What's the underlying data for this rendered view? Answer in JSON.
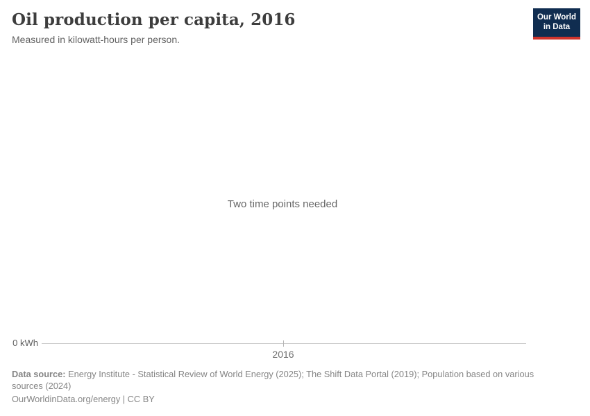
{
  "header": {
    "title": "Oil production per capita, 2016",
    "subtitle": "Measured in kilowatt-hours per person.",
    "logo": {
      "line1": "Our World",
      "line2": "in Data"
    }
  },
  "chart": {
    "empty_state_message": "Two time points needed",
    "axis": {
      "y_zero_label": "0 kWh",
      "x_tick_label": "2016"
    }
  },
  "footer": {
    "data_source_label": "Data source:",
    "data_source_text": "Energy Institute - Statistical Review of World Energy (2025); The Shift Data Portal (2019); Population based on various sources (2024)",
    "attribution": "OurWorldinData.org/energy | CC BY"
  },
  "colors": {
    "logo_navy": "#102d50",
    "logo_red": "#d0342c",
    "title_text": "#3d3d3d",
    "subtitle_text": "#616161",
    "message_text": "#666666",
    "axis_line": "#cccccc",
    "footer_text": "#858585",
    "background": "#ffffff"
  },
  "chart_data": {
    "type": "line",
    "title": "Oil production per capita, 2016",
    "subtitle": "Measured in kilowatt-hours per person.",
    "unit": "kilowatt-hours per person",
    "x_ticks": [
      "2016"
    ],
    "y_ticks": [
      "0 kWh"
    ],
    "series": [],
    "empty_state_message": "Two time points needed",
    "grid": false,
    "legend": "none"
  }
}
